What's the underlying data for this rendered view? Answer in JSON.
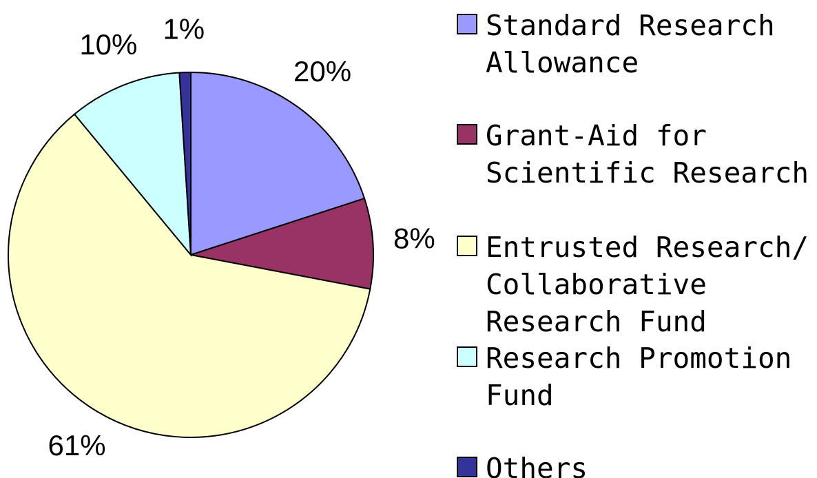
{
  "chart_data": {
    "type": "pie",
    "categories": [
      "Standard Research Allowance",
      "Grant-Aid for Scientific Research",
      "Entrusted Research/ Collaborative Research Fund",
      "Research Promotion Fund",
      "Others"
    ],
    "values": [
      20,
      8,
      61,
      10,
      1
    ],
    "value_labels": [
      "20%",
      "8%",
      "61%",
      "10%",
      "1%"
    ],
    "colors": [
      "#9999ff",
      "#993366",
      "#ffffcc",
      "#ccffff",
      "#333399"
    ],
    "legend": "right"
  }
}
